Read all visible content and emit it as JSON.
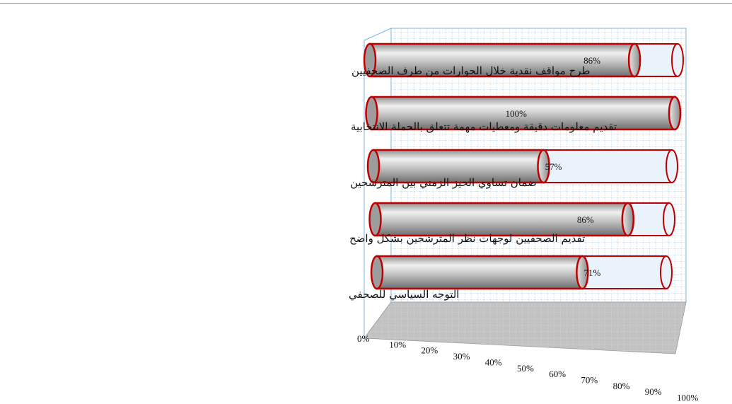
{
  "chart_data": {
    "type": "bar",
    "orientation": "horizontal",
    "style": "3d-cylinder",
    "categories": [
      "طرح مواقف  نقدية خلال الحوارات  من طرف الصحفيين",
      "تقديم معلومات دقيقة ومعطيات مهمة تتعلق بالحملة الانتخابية",
      "ضمان تساوي الحيز الزمني بين المترشحين",
      "تقديم الصحفيين لوجهات نظر المترشحين بشكل واضح",
      "التوجه السياسي للصحفي"
    ],
    "values": [
      86,
      100,
      57,
      86,
      71
    ],
    "value_labels": [
      "86%",
      "100%",
      "57%",
      "86%",
      "71%"
    ],
    "x_ticks": [
      "0%",
      "10%",
      "20%",
      "30%",
      "40%",
      "50%",
      "60%",
      "70%",
      "80%",
      "90%",
      "100%"
    ],
    "xlim": [
      0,
      100
    ],
    "grid": true,
    "legend": "none",
    "colors": {
      "bar_fill": "#a6a6a6",
      "bar_highlight": "#f2f2f2",
      "bar_outline": "#c00000",
      "remainder_fill": "#eaf2fb",
      "grid": "#7fb2e5",
      "floor": "#b7b7b7"
    }
  }
}
